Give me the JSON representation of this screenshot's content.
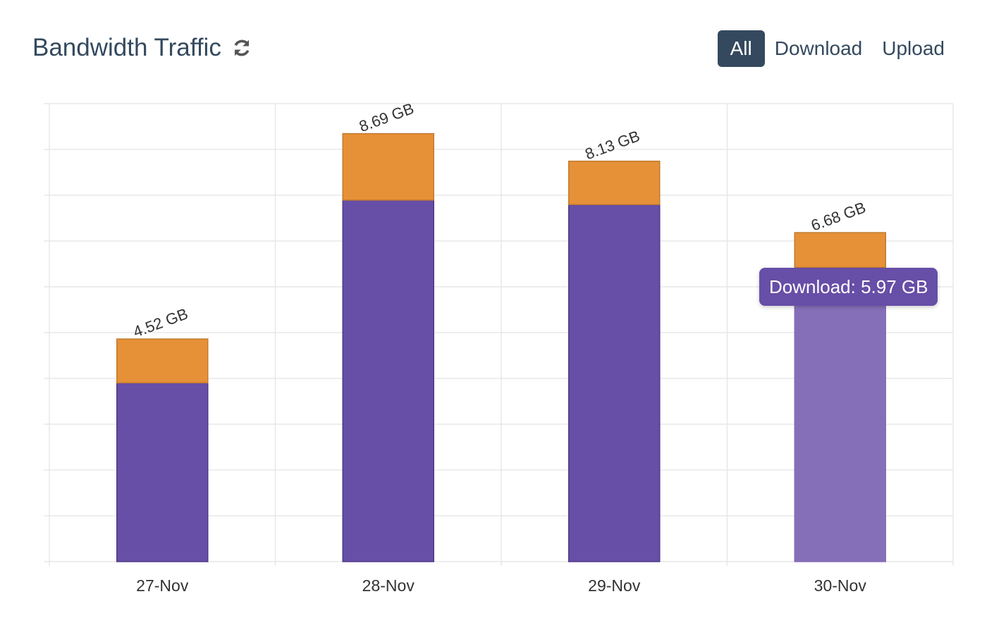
{
  "header": {
    "title": "Bandwidth Traffic",
    "refresh_icon": "refresh-icon",
    "filters": [
      {
        "label": "All",
        "active": true
      },
      {
        "label": "Download",
        "active": false
      },
      {
        "label": "Upload",
        "active": false
      }
    ]
  },
  "chart_data": {
    "type": "bar",
    "stacked": true,
    "categories": [
      "27-Nov",
      "28-Nov",
      "29-Nov",
      "30-Nov"
    ],
    "series": [
      {
        "name": "Download",
        "values": [
          3.63,
          7.34,
          7.25,
          5.97
        ],
        "color": "#674ea7"
      },
      {
        "name": "Upload",
        "values": [
          0.89,
          1.35,
          0.88,
          0.71
        ],
        "color": "#e69138"
      }
    ],
    "total_labels": [
      "4.52 GB",
      "8.69 GB",
      "8.13 GB",
      "6.68 GB"
    ],
    "ylim": [
      0,
      9.3
    ],
    "grid": true,
    "highlighted_category": "30-Nov",
    "highlight_color": "#856fb8",
    "tooltip": "Download: 5.97 GB"
  }
}
